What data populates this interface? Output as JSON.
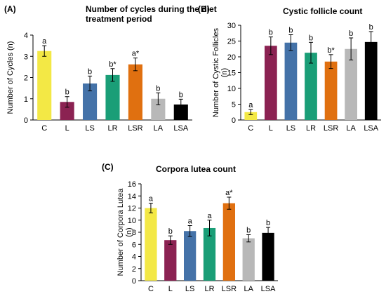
{
  "chart_data": [
    {
      "type": "bar",
      "panel": "(A)",
      "title_lines": [
        "Number of cycles during the diet",
        "treatment period"
      ],
      "ylabel_lines": [
        "Number  of Cycles (n)"
      ],
      "categories": [
        "C",
        "L",
        "LS",
        "LR",
        "LSR",
        "LA",
        "LSA"
      ],
      "values": [
        3.25,
        0.85,
        1.72,
        2.12,
        2.62,
        1.0,
        0.73
      ],
      "errors": [
        0.25,
        0.25,
        0.35,
        0.3,
        0.3,
        0.28,
        0.25
      ],
      "labels": [
        "a",
        "b",
        "b",
        "b*",
        "a*",
        "b",
        "b"
      ],
      "ylim": [
        0,
        4
      ],
      "yticks": [
        0,
        1,
        2,
        3,
        4
      ],
      "colors": [
        "#f3e845",
        "#8b2252",
        "#4472a8",
        "#1a9e77",
        "#e07010",
        "#b8b8b8",
        "#000000"
      ]
    },
    {
      "type": "bar",
      "panel": "(B)",
      "title_lines": [
        "Cystic follicle count"
      ],
      "ylabel_lines": [
        "Number of Cystic Follicles",
        "(n)"
      ],
      "categories": [
        "C",
        "L",
        "LS",
        "LR",
        "LSR",
        "LA",
        "LSA"
      ],
      "values": [
        2.5,
        23.5,
        24.5,
        21.3,
        18.5,
        22.5,
        24.7
      ],
      "errors": [
        0.8,
        2.8,
        2.5,
        3.3,
        2.2,
        3.5,
        3.3
      ],
      "labels": [
        "a",
        "b",
        "b",
        "b",
        "b*",
        "b",
        "b"
      ],
      "ylim": [
        0,
        30
      ],
      "yticks": [
        0,
        5,
        10,
        15,
        20,
        25,
        30
      ],
      "colors": [
        "#f3e845",
        "#8b2252",
        "#4472a8",
        "#1a9e77",
        "#e07010",
        "#b8b8b8",
        "#000000"
      ]
    },
    {
      "type": "bar",
      "panel": "(C)",
      "title_lines": [
        "Corpora lutea count"
      ],
      "ylabel_lines": [
        "Number of Corpora Lutea",
        "(n)"
      ],
      "categories": [
        "C",
        "L",
        "LS",
        "LR",
        "LSR",
        "LA",
        "LSA"
      ],
      "values": [
        12.0,
        6.7,
        8.2,
        8.7,
        12.8,
        7.0,
        7.9
      ],
      "errors": [
        0.8,
        0.7,
        0.9,
        1.3,
        1.0,
        0.6,
        0.9
      ],
      "labels": [
        "a",
        "b",
        "a",
        "a",
        "a*",
        "b",
        "b"
      ],
      "ylim": [
        0,
        16
      ],
      "yticks": [
        0,
        2,
        4,
        6,
        8,
        10,
        12,
        14,
        16
      ],
      "colors": [
        "#f3e845",
        "#8b2252",
        "#4472a8",
        "#1a9e77",
        "#e07010",
        "#b8b8b8",
        "#000000"
      ]
    }
  ]
}
